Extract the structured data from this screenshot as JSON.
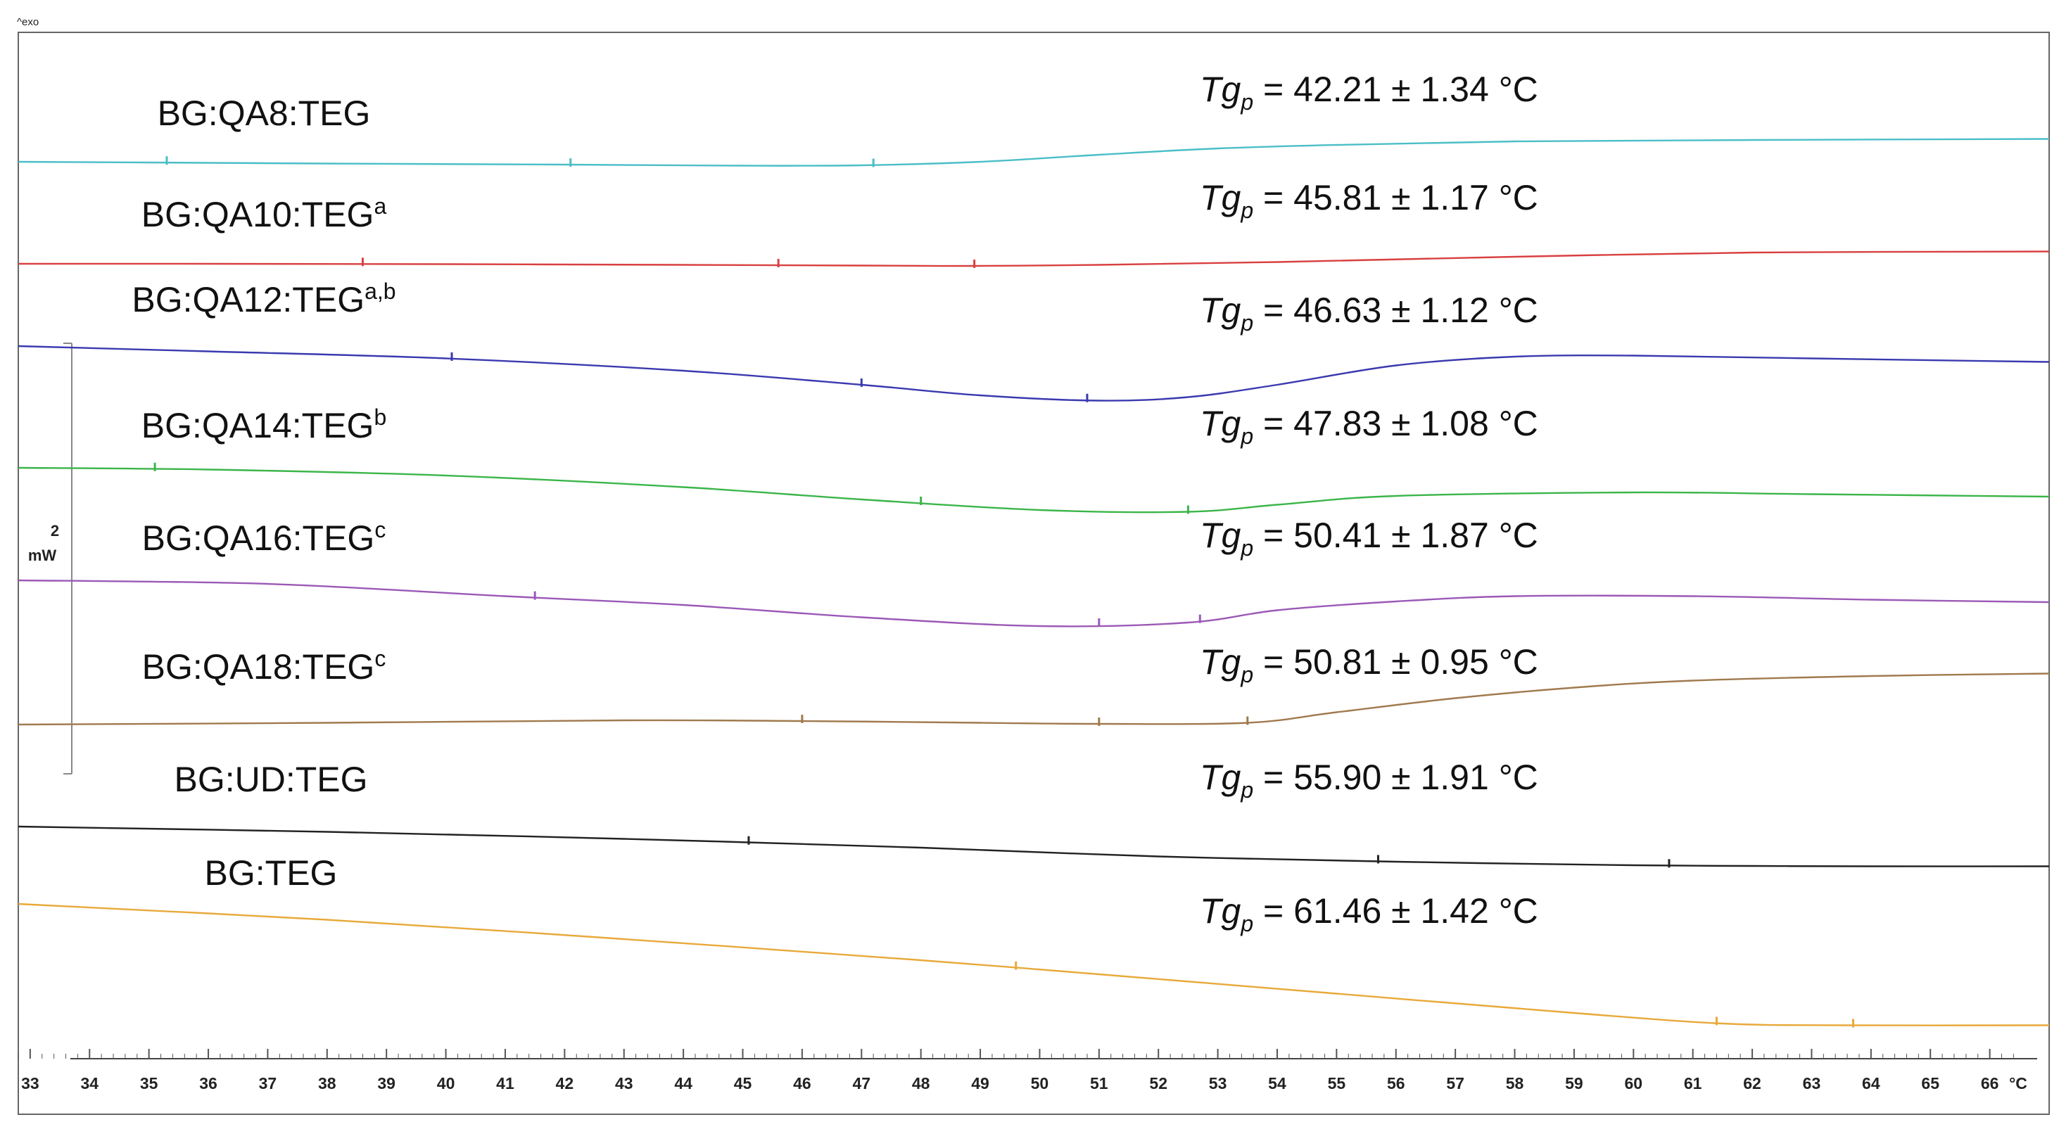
{
  "chart_data": {
    "type": "line",
    "title": "",
    "xlabel": "",
    "ylabel": "",
    "x_unit": "°C",
    "xlim": [
      32.8,
      67.0
    ],
    "x_ticks": [
      33,
      34,
      35,
      36,
      37,
      38,
      39,
      40,
      41,
      42,
      43,
      44,
      45,
      46,
      47,
      48,
      49,
      50,
      51,
      52,
      53,
      54,
      55,
      56,
      57,
      58,
      59,
      60,
      61,
      62,
      63,
      64,
      65,
      66
    ],
    "exo_label": "^exo",
    "scale_bar": {
      "value": "2",
      "unit": "mW"
    },
    "grid": false,
    "series": [
      {
        "name": "BG:QA8:TEG",
        "sup": "",
        "color": "#4bbec7",
        "tg_value": "42.21 ± 1.34 °C",
        "x": [
          32.8,
          35,
          38,
          42,
          45,
          47,
          49,
          51,
          53,
          55,
          58,
          62,
          67
        ],
        "y": [
          0.0,
          -0.02,
          -0.05,
          -0.08,
          -0.11,
          -0.1,
          0.0,
          0.2,
          0.38,
          0.48,
          0.58,
          0.62,
          0.65
        ],
        "markers": [
          35.3,
          42.1,
          47.2
        ]
      },
      {
        "name": "BG:QA10:TEG",
        "sup": "a",
        "color": "#d94040",
        "tg_value": "45.81 ± 1.17 °C",
        "x": [
          32.8,
          36,
          40,
          44,
          47,
          49,
          51,
          54,
          58,
          62,
          67
        ],
        "y": [
          0.0,
          0.0,
          -0.01,
          -0.03,
          -0.05,
          -0.06,
          -0.03,
          0.05,
          0.2,
          0.32,
          0.35
        ],
        "markers": [
          38.6,
          45.6,
          48.9
        ]
      },
      {
        "name": "BG:QA12:TEG",
        "sup": "a,b",
        "color": "#3a3ab0",
        "tg_value": "46.63 ± 1.12 °C",
        "x": [
          32.8,
          36,
          40,
          44,
          47,
          49,
          51,
          52.5,
          54,
          56,
          58,
          60,
          63,
          67
        ],
        "y": [
          0.0,
          -0.15,
          -0.35,
          -0.7,
          -1.1,
          -1.4,
          -1.55,
          -1.45,
          -1.1,
          -0.55,
          -0.3,
          -0.27,
          -0.35,
          -0.45
        ],
        "markers": [
          40.1,
          47.0,
          50.8
        ]
      },
      {
        "name": "BG:QA14:TEG",
        "sup": "b",
        "color": "#3cb54a",
        "tg_value": "47.83 ± 1.08 °C",
        "x": [
          32.8,
          36,
          40,
          44,
          47,
          50,
          52.5,
          54,
          56,
          60,
          63,
          67
        ],
        "y": [
          0.0,
          -0.05,
          -0.22,
          -0.55,
          -0.9,
          -1.2,
          -1.25,
          -1.05,
          -0.8,
          -0.7,
          -0.75,
          -0.82
        ],
        "markers": [
          35.1,
          48.0,
          52.5
        ]
      },
      {
        "name": "BG:QA16:TEG",
        "sup": "c",
        "color": "#9b59b6",
        "tg_value": "50.41 ± 1.87 °C",
        "x": [
          32.8,
          37,
          41,
          44,
          47,
          50,
          52.5,
          54,
          56,
          58,
          61,
          64,
          67
        ],
        "y": [
          0.0,
          -0.1,
          -0.45,
          -0.7,
          -1.05,
          -1.3,
          -1.2,
          -0.85,
          -0.6,
          -0.45,
          -0.45,
          -0.55,
          -0.62
        ],
        "markers": [
          41.5,
          51.0,
          52.7
        ]
      },
      {
        "name": "BG:QA18:TEG",
        "sup": "c",
        "color": "#a07a4e",
        "tg_value": "50.81 ± 0.95 °C",
        "x": [
          32.8,
          38,
          43,
          46,
          49,
          51,
          53.5,
          55,
          57,
          59,
          61,
          64,
          67
        ],
        "y": [
          0.0,
          0.05,
          0.12,
          0.1,
          0.05,
          0.02,
          0.05,
          0.35,
          0.75,
          1.05,
          1.25,
          1.38,
          1.45
        ],
        "markers": [
          46.0,
          51.0,
          53.5
        ]
      },
      {
        "name": "BG:UD:TEG",
        "sup": "",
        "color": "#222222",
        "tg_value": "55.90 ± 1.91 °C",
        "x": [
          32.8,
          38,
          43,
          48,
          52,
          56,
          60,
          62,
          64,
          67
        ],
        "y": [
          0.0,
          -0.15,
          -0.35,
          -0.6,
          -0.85,
          -1.0,
          -1.1,
          -1.12,
          -1.13,
          -1.13
        ],
        "markers": [
          45.1,
          55.7,
          60.6
        ]
      },
      {
        "name": "BG:TEG",
        "sup": "",
        "color": "#e8a93a",
        "tg_value": "61.46 ± 1.42 °C",
        "x": [
          32.8,
          38,
          43,
          48,
          51,
          55,
          59,
          61.5,
          63.5,
          67
        ],
        "y": [
          0.0,
          -0.45,
          -1.0,
          -1.6,
          -2.0,
          -2.55,
          -3.1,
          -3.4,
          -3.45,
          -3.45
        ],
        "markers": [
          49.6,
          61.4,
          63.7
        ]
      }
    ]
  }
}
